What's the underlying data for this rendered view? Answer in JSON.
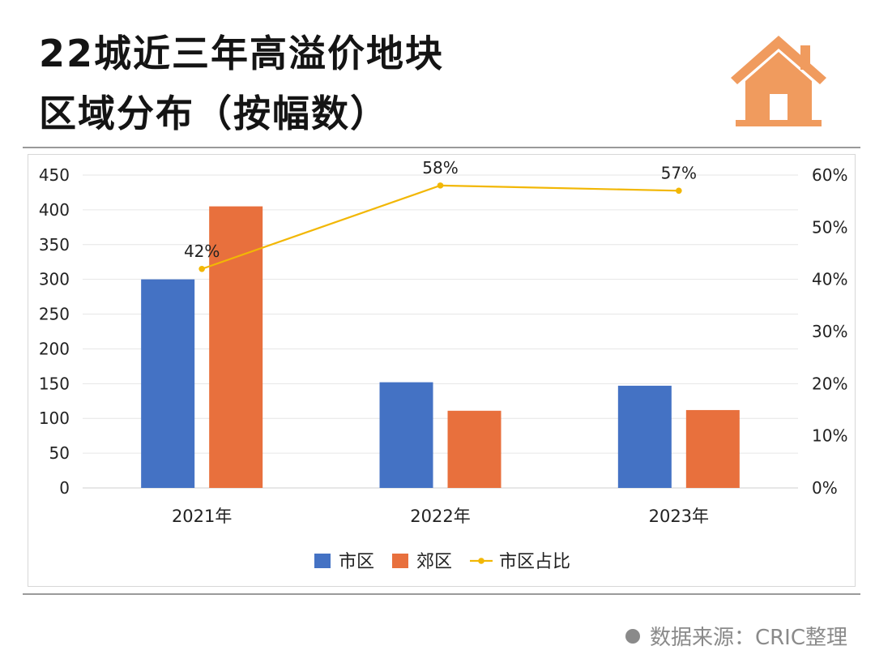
{
  "title": {
    "line1": "22城近三年高溢价地块",
    "line2": "区域分布（按幅数）"
  },
  "icon": "house-icon",
  "colors": {
    "city": "#4472C4",
    "suburb": "#E8703D",
    "share": "#F2B705",
    "icon": "#F09B5E"
  },
  "source": "数据来源：CRIC整理",
  "chart_data": {
    "type": "bar",
    "categories": [
      "2021年",
      "2022年",
      "2023年"
    ],
    "series": [
      {
        "name": "市区",
        "kind": "bar",
        "axis": "left",
        "values": [
          300,
          152,
          147
        ]
      },
      {
        "name": "郊区",
        "kind": "bar",
        "axis": "left",
        "values": [
          405,
          111,
          112
        ]
      },
      {
        "name": "市区占比",
        "kind": "line",
        "axis": "right",
        "values": [
          42,
          58,
          57
        ],
        "labels": [
          "42%",
          "58%",
          "57%"
        ]
      }
    ],
    "left_axis": {
      "min": 0,
      "max": 450,
      "ticks": [
        "0",
        "50",
        "100",
        "150",
        "200",
        "250",
        "300",
        "350",
        "400",
        "450"
      ]
    },
    "right_axis": {
      "min": 0,
      "max": 60,
      "ticks": [
        "0%",
        "10%",
        "20%",
        "30%",
        "40%",
        "50%",
        "60%"
      ]
    },
    "legend": [
      "市区",
      "郊区",
      "市区占比"
    ],
    "legend_position": "bottom",
    "grid": true
  }
}
